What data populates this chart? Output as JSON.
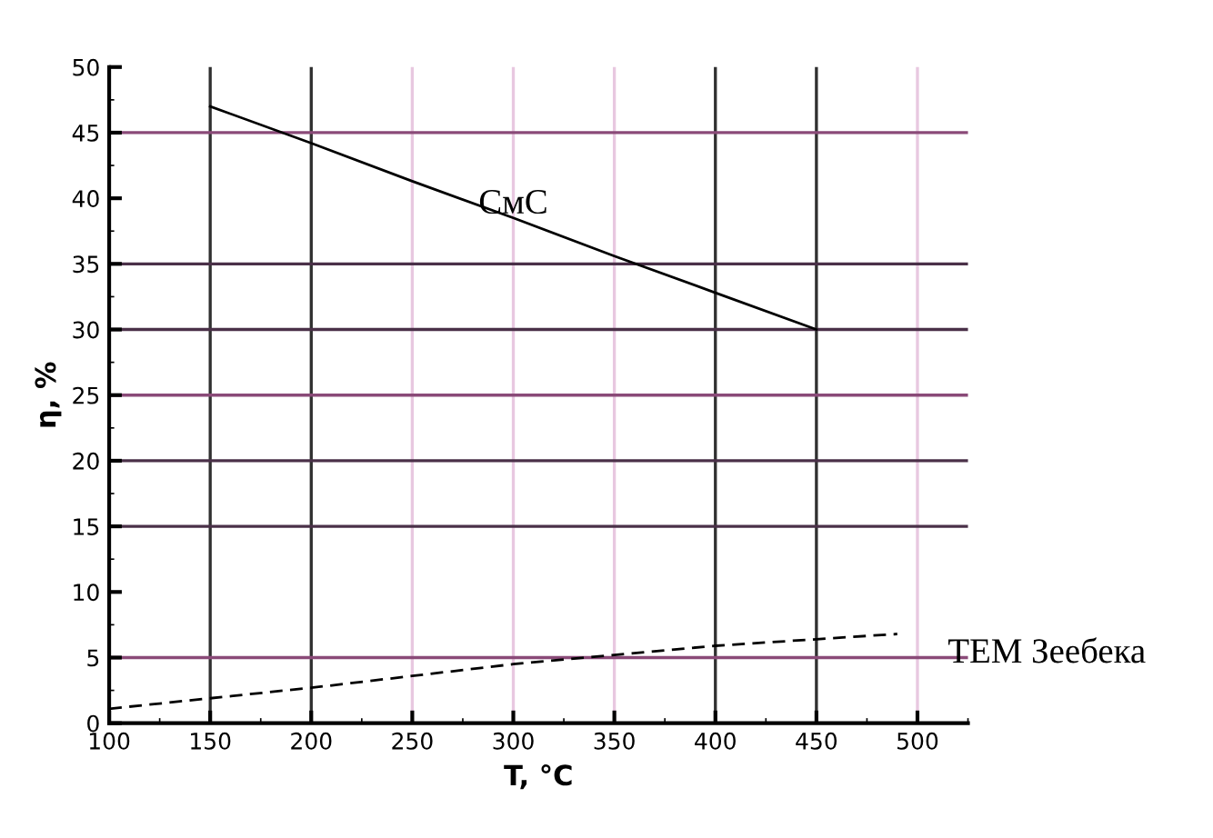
{
  "chart_data": {
    "type": "line",
    "xlabel": "T, °C",
    "ylabel": "η, %",
    "xlim": [
      100,
      525
    ],
    "xticks": [
      100,
      150,
      200,
      250,
      300,
      350,
      400,
      450,
      500
    ],
    "ylim": [
      0,
      50
    ],
    "yticks": [
      0,
      5,
      10,
      15,
      20,
      25,
      30,
      35,
      40,
      45,
      50
    ],
    "grid": false,
    "series": [
      {
        "name": "СмС",
        "color": "#000000",
        "line_style": "solid",
        "x": [
          150,
          200,
          250,
          300,
          350,
          400,
          450
        ],
        "values": [
          47,
          44.2,
          41.3,
          38.5,
          35.6,
          32.8,
          30
        ]
      },
      {
        "name": "ТЕМ Зеебека",
        "color": "#000000",
        "line_style": "dashed",
        "x": [
          100,
          150,
          200,
          250,
          300,
          350,
          400,
          450,
          490
        ],
        "values": [
          1.1,
          1.9,
          2.7,
          3.6,
          4.5,
          5.2,
          5.9,
          6.4,
          6.8
        ]
      }
    ],
    "ref_lines": [
      {
        "axis": "x",
        "value": 150,
        "color": "#303030"
      },
      {
        "axis": "x",
        "value": 200,
        "color": "#303030"
      },
      {
        "axis": "x",
        "value": 250,
        "color": "#e8c8e0"
      },
      {
        "axis": "x",
        "value": 300,
        "color": "#e8c8e0"
      },
      {
        "axis": "x",
        "value": 350,
        "color": "#e8c8e0"
      },
      {
        "axis": "x",
        "value": 400,
        "color": "#303030"
      },
      {
        "axis": "x",
        "value": 450,
        "color": "#303030"
      },
      {
        "axis": "x",
        "value": 500,
        "color": "#e8c8e0"
      },
      {
        "axis": "y",
        "value": 5,
        "color": "#8a4a78"
      },
      {
        "axis": "y",
        "value": 15,
        "color": "#4a3048"
      },
      {
        "axis": "y",
        "value": 20,
        "color": "#4a3048"
      },
      {
        "axis": "y",
        "value": 25,
        "color": "#8a4a78"
      },
      {
        "axis": "y",
        "value": 30,
        "color": "#4a3048"
      },
      {
        "axis": "y",
        "value": 35,
        "color": "#4a3048"
      },
      {
        "axis": "y",
        "value": 45,
        "color": "#8a4a78"
      }
    ]
  }
}
